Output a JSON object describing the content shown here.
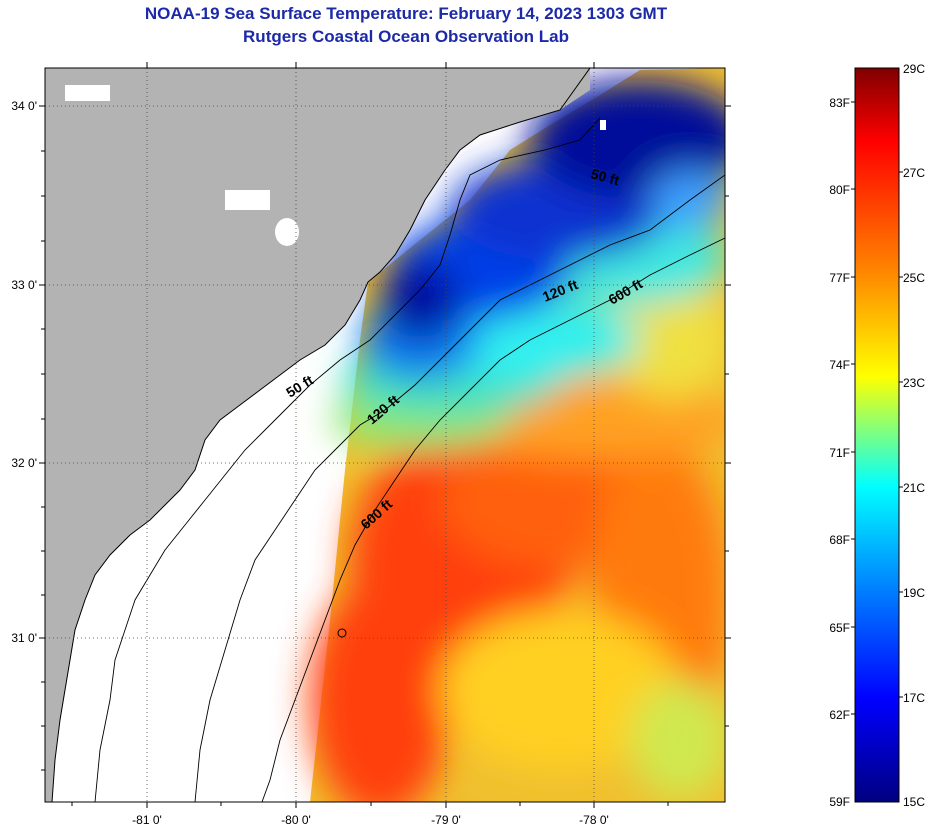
{
  "title": {
    "line1": "NOAA-19 Sea Surface Temperature:  February 14, 2023 1303 GMT",
    "line2": "Rutgers Coastal Ocean Observation Lab"
  },
  "map": {
    "lon_ticks": [
      "-81 0'",
      "-80 0'",
      "-79 0'",
      "-78 0'"
    ],
    "lat_ticks": [
      "34 0'",
      "33 0'",
      "32 0'",
      "31 0'"
    ],
    "contour_labels": [
      "50 ft",
      "120 ft",
      "600 ft",
      "50 ft",
      "120 ft",
      "600 ft"
    ]
  },
  "colorbar": {
    "celsius_labels": [
      "29C",
      "27C",
      "25C",
      "23C",
      "21C",
      "19C",
      "17C",
      "15C"
    ],
    "fahrenheit_labels": [
      "83F",
      "80F",
      "77F",
      "74F",
      "71F",
      "68F",
      "65F",
      "62F",
      "59F"
    ],
    "colors": [
      "#800000",
      "#ff0000",
      "#ff8000",
      "#ffff00",
      "#00ffff",
      "#0080ff",
      "#0000ff",
      "#000080"
    ]
  },
  "colors": {
    "land": "#b3b3b3",
    "no_data": "#ffffff",
    "title": "#1d2aa8"
  }
}
